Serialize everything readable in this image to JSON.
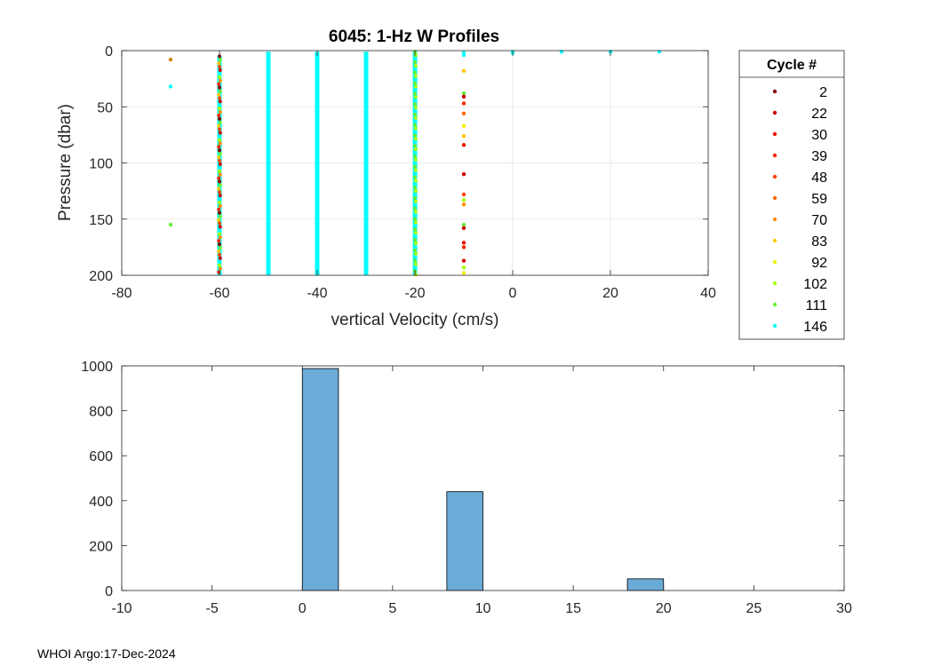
{
  "footer": {
    "source": "WHOI Argo",
    "date": "17-Dec-2024"
  },
  "chart_data": [
    {
      "type": "scatter",
      "title": "6045: 1-Hz W Profiles",
      "xlabel": "vertical Velocity (cm/s)",
      "ylabel": "Pressure (dbar)",
      "xlim": [
        -80,
        40
      ],
      "ylim": [
        0,
        200
      ],
      "y_reversed": true,
      "xticks": [
        -80,
        -60,
        -40,
        -20,
        0,
        20,
        40
      ],
      "yticks": [
        0,
        50,
        100,
        150,
        200
      ],
      "grid": true,
      "legend": {
        "title": "Cycle #",
        "placement": "outside-right",
        "entries": [
          {
            "label": "2",
            "color": "#800000"
          },
          {
            "label": "22",
            "color": "#cc0000"
          },
          {
            "label": "30",
            "color": "#ee1100"
          },
          {
            "label": "39",
            "color": "#ff2200"
          },
          {
            "label": "48",
            "color": "#ff4400"
          },
          {
            "label": "59",
            "color": "#ff6600"
          },
          {
            "label": "70",
            "color": "#ff8c00"
          },
          {
            "label": "83",
            "color": "#ffc800"
          },
          {
            "label": "92",
            "color": "#f0f000"
          },
          {
            "label": "102",
            "color": "#aaff00"
          },
          {
            "label": "111",
            "color": "#66ee33"
          },
          {
            "label": "146",
            "color": "#00ffff"
          }
        ]
      },
      "columns": [
        {
          "x": -60,
          "y_range": [
            5,
            200
          ],
          "colors": [
            "#800000",
            "#cc0000",
            "#ff2200",
            "#ff4400",
            "#ff8c00",
            "#ffc800",
            "#aaff00",
            "#66ee33",
            "#00ffff"
          ],
          "dominant": "#00ffff"
        },
        {
          "x": -50,
          "y_range": [
            1,
            200
          ],
          "colors": [
            "#00ffff"
          ],
          "dominant": "#00ffff"
        },
        {
          "x": -40,
          "y_range": [
            1,
            200
          ],
          "colors": [
            "#00ffff"
          ],
          "dominant": "#00ffff"
        },
        {
          "x": -30,
          "y_range": [
            1,
            200
          ],
          "colors": [
            "#00ffff"
          ],
          "dominant": "#00ffff"
        },
        {
          "x": -20,
          "y_range": [
            1,
            200
          ],
          "colors": [
            "#66ee33",
            "#aaff00",
            "#00ffff"
          ],
          "dominant": "#00ffff"
        }
      ],
      "points": [
        {
          "x": -70,
          "y": 8,
          "color": "#cc8800"
        },
        {
          "x": -70,
          "y": 32,
          "color": "#00ffff"
        },
        {
          "x": -70,
          "y": 155,
          "color": "#66ee33"
        },
        {
          "x": -10,
          "y": 2,
          "color": "#00ffff"
        },
        {
          "x": -10,
          "y": 4,
          "color": "#00ffff"
        },
        {
          "x": -10,
          "y": 18,
          "color": "#ffc800"
        },
        {
          "x": -10,
          "y": 38,
          "color": "#66ee33"
        },
        {
          "x": -10,
          "y": 41,
          "color": "#cc0000"
        },
        {
          "x": -10,
          "y": 47,
          "color": "#ff2200"
        },
        {
          "x": -10,
          "y": 56,
          "color": "#ff6600"
        },
        {
          "x": -10,
          "y": 67,
          "color": "#f0f000"
        },
        {
          "x": -10,
          "y": 76,
          "color": "#ffc800"
        },
        {
          "x": -10,
          "y": 84,
          "color": "#ee1100"
        },
        {
          "x": -10,
          "y": 110,
          "color": "#cc0000"
        },
        {
          "x": -10,
          "y": 128,
          "color": "#ff4400"
        },
        {
          "x": -10,
          "y": 133,
          "color": "#aaff00"
        },
        {
          "x": -10,
          "y": 137,
          "color": "#ff8c00"
        },
        {
          "x": -10,
          "y": 155,
          "color": "#66ee33"
        },
        {
          "x": -10,
          "y": 158,
          "color": "#cc0000"
        },
        {
          "x": -10,
          "y": 171,
          "color": "#ee1100"
        },
        {
          "x": -10,
          "y": 175,
          "color": "#ff2200"
        },
        {
          "x": -10,
          "y": 187,
          "color": "#cc0000"
        },
        {
          "x": -10,
          "y": 193,
          "color": "#aaff00"
        },
        {
          "x": -10,
          "y": 198,
          "color": "#f0f000"
        },
        {
          "x": 0,
          "y": 1,
          "color": "#00ffff"
        },
        {
          "x": 0,
          "y": 2,
          "color": "#00ffff"
        },
        {
          "x": 10,
          "y": 1,
          "color": "#00ffff"
        },
        {
          "x": 20,
          "y": 1,
          "color": "#00ffff"
        },
        {
          "x": 30,
          "y": 1,
          "color": "#00ffff"
        }
      ]
    },
    {
      "type": "histogram",
      "xlim": [
        -10,
        30
      ],
      "ylim": [
        0,
        1000
      ],
      "xticks": [
        -10,
        -5,
        0,
        5,
        10,
        15,
        20,
        25,
        30
      ],
      "yticks": [
        0,
        200,
        400,
        600,
        800,
        1000
      ],
      "grid": false,
      "bar_color": "#6aabd8",
      "bins": [
        {
          "x0": -10,
          "x1": -8,
          "value": 0
        },
        {
          "x0": -8,
          "x1": -6,
          "value": 0
        },
        {
          "x0": -6,
          "x1": -4,
          "value": 0
        },
        {
          "x0": -4,
          "x1": -2,
          "value": 0
        },
        {
          "x0": -2,
          "x1": 0,
          "value": 0
        },
        {
          "x0": 0,
          "x1": 2,
          "value": 988
        },
        {
          "x0": 2,
          "x1": 4,
          "value": 0
        },
        {
          "x0": 4,
          "x1": 6,
          "value": 0
        },
        {
          "x0": 6,
          "x1": 8,
          "value": 0
        },
        {
          "x0": 8,
          "x1": 10,
          "value": 440
        },
        {
          "x0": 10,
          "x1": 12,
          "value": 0
        },
        {
          "x0": 12,
          "x1": 14,
          "value": 0
        },
        {
          "x0": 14,
          "x1": 16,
          "value": 0
        },
        {
          "x0": 16,
          "x1": 18,
          "value": 0
        },
        {
          "x0": 18,
          "x1": 20,
          "value": 52
        },
        {
          "x0": 20,
          "x1": 22,
          "value": 0
        },
        {
          "x0": 22,
          "x1": 24,
          "value": 0
        },
        {
          "x0": 24,
          "x1": 26,
          "value": 0
        },
        {
          "x0": 26,
          "x1": 28,
          "value": 0
        },
        {
          "x0": 28,
          "x1": 30,
          "value": 0
        }
      ]
    }
  ]
}
